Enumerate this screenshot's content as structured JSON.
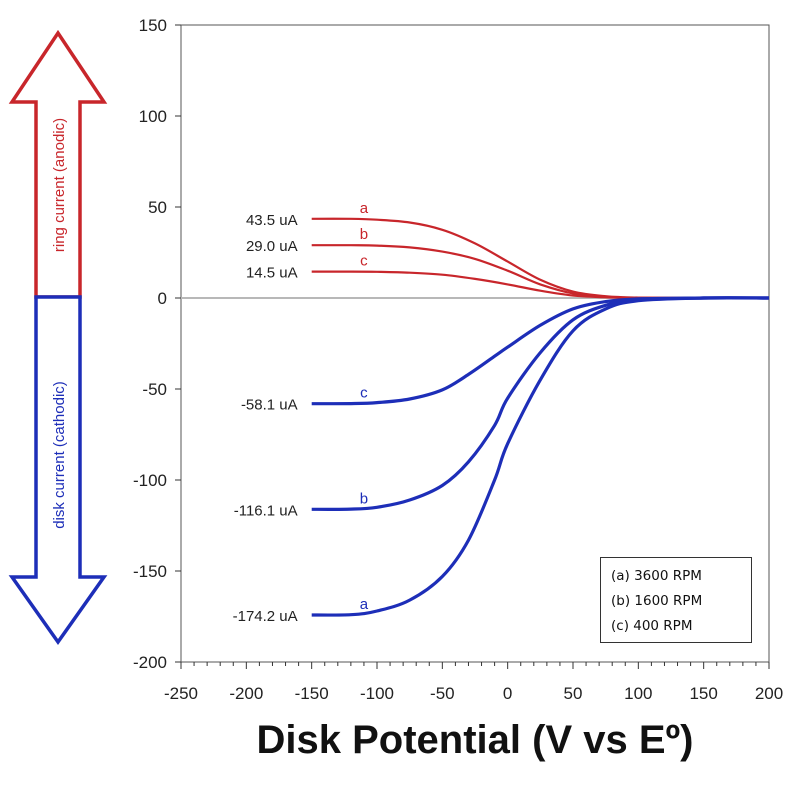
{
  "chart_data": {
    "type": "line",
    "xlabel": "Disk Potential (V vs Eº)",
    "ylabel": "",
    "xlim": [
      -250,
      200
    ],
    "ylim": [
      -200,
      150
    ],
    "x_ticks": [
      "-250",
      "-200",
      "-150",
      "-100",
      "-50",
      "0",
      "50",
      "100",
      "150",
      "200"
    ],
    "y_ticks": [
      "150",
      "100",
      "50",
      "0",
      "-50",
      "-100",
      "-150",
      "-200"
    ],
    "arrows": {
      "up": "ring current (anodic)",
      "down": "disk current (cathodic)"
    },
    "legend": {
      "placement": "bottom-right",
      "entries": [
        "(a) 3600 RPM",
        "(b) 1600 RPM",
        "(c) 400 RPM"
      ]
    },
    "series": [
      {
        "curve": "a",
        "kind": "ring",
        "color": "#c8262b",
        "plateau_label": "43.5 uA",
        "x": [
          -150,
          -120,
          -100,
          -75,
          -50,
          -25,
          0,
          25,
          50,
          75,
          100,
          150,
          200
        ],
        "y": [
          43.5,
          43.5,
          43.0,
          41.5,
          37.5,
          30.0,
          20.0,
          10.0,
          3.5,
          1.0,
          0.2,
          0,
          0
        ]
      },
      {
        "curve": "b",
        "kind": "ring",
        "color": "#c8262b",
        "plateau_label": "29.0 uA",
        "x": [
          -150,
          -120,
          -100,
          -75,
          -50,
          -25,
          0,
          25,
          50,
          75,
          100,
          150,
          200
        ],
        "y": [
          29.0,
          29.0,
          28.8,
          27.8,
          25.5,
          21.5,
          15.0,
          7.5,
          2.5,
          0.7,
          0.1,
          0,
          0
        ]
      },
      {
        "curve": "c",
        "kind": "ring",
        "color": "#c8262b",
        "plateau_label": "14.5 uA",
        "x": [
          -150,
          -120,
          -100,
          -75,
          -50,
          -25,
          0,
          25,
          50,
          75,
          100,
          150,
          200
        ],
        "y": [
          14.5,
          14.5,
          14.4,
          13.9,
          12.8,
          10.5,
          7.5,
          4.0,
          1.4,
          0.4,
          0.1,
          0,
          0
        ]
      },
      {
        "curve": "c",
        "kind": "disk",
        "color": "#1d2eb8",
        "plateau_label": "-58.1 uA",
        "x": [
          -150,
          -120,
          -100,
          -75,
          -50,
          -30,
          -10,
          0,
          25,
          50,
          75,
          100,
          150,
          200
        ],
        "y": [
          -58.1,
          -58.0,
          -57.5,
          -55.5,
          -50.5,
          -42.0,
          -32.0,
          -27.0,
          -15.0,
          -6.0,
          -2.0,
          -0.5,
          0,
          0
        ]
      },
      {
        "curve": "b",
        "kind": "disk",
        "color": "#1d2eb8",
        "plateau_label": "-116.1 uA",
        "x": [
          -150,
          -120,
          -100,
          -75,
          -50,
          -30,
          -10,
          0,
          25,
          50,
          75,
          100,
          150,
          200
        ],
        "y": [
          -116.1,
          -116.0,
          -115.0,
          -111.0,
          -103.0,
          -90.0,
          -70.0,
          -55.0,
          -30.0,
          -12.0,
          -4.0,
          -1.0,
          0,
          0
        ]
      },
      {
        "curve": "a",
        "kind": "disk",
        "color": "#1d2eb8",
        "plateau_label": "-174.2 uA",
        "x": [
          -150,
          -120,
          -100,
          -75,
          -50,
          -30,
          -10,
          0,
          25,
          50,
          75,
          100,
          150,
          200
        ],
        "y": [
          -174.2,
          -174.0,
          -172.0,
          -166.0,
          -153.0,
          -133.0,
          -100.0,
          -80.0,
          -45.0,
          -18.0,
          -6.0,
          -1.5,
          0,
          0
        ]
      }
    ]
  }
}
